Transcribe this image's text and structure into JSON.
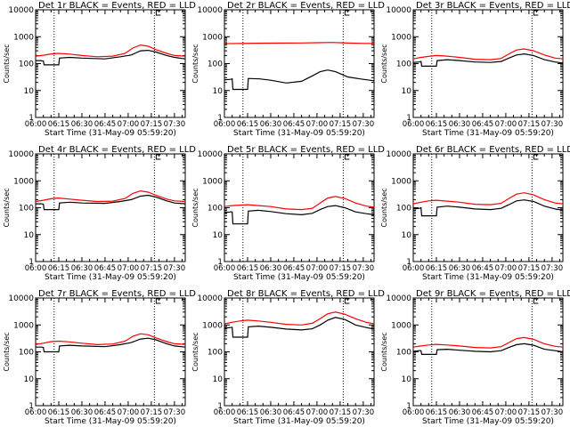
{
  "figure": {
    "xlabel": "Start Time (31-May-09 05:59:20)",
    "ylabel": "Counts/sec",
    "x_tick_labels": [
      "06:00",
      "06:15",
      "06:30",
      "06:45",
      "07:00",
      "07:15",
      "07:30"
    ],
    "y_tick_labels": [
      "1",
      "10",
      "100",
      "1000",
      "10000"
    ],
    "corner_mark": "E",
    "colors": {
      "events": "#000000",
      "lld": "#ff0000",
      "dotted_lines": "#000000"
    }
  },
  "chart_data": [
    {
      "type": "line",
      "title": "Det 1r BLACK = Events, RED = LLD",
      "xlabel": "Start Time (31-May-09 05:59:20)",
      "ylabel": "Counts/sec",
      "y_scale": "log",
      "ylim": [
        1,
        10000
      ],
      "x_minutes_ticks": [
        0,
        15,
        30,
        45,
        60,
        75,
        90
      ],
      "xlim_minutes": [
        0,
        97
      ],
      "vlines_minutes": [
        12,
        77
      ],
      "series": [
        {
          "name": "Events",
          "color": "#000000",
          "x_minutes": [
            0,
            3,
            5,
            5.5,
            15,
            15.5,
            22,
            30,
            45,
            55,
            62,
            68,
            73,
            78,
            85,
            90,
            97
          ],
          "values": [
            130,
            130,
            125,
            90,
            90,
            160,
            170,
            160,
            150,
            180,
            210,
            300,
            310,
            270,
            200,
            170,
            150
          ]
        },
        {
          "name": "LLD",
          "color": "#ff0000",
          "x_minutes": [
            0,
            5,
            10,
            15,
            22,
            30,
            40,
            50,
            58,
            63,
            68,
            73,
            78,
            85,
            90,
            97
          ],
          "values": [
            190,
            205,
            230,
            240,
            225,
            200,
            180,
            190,
            240,
            380,
            490,
            440,
            330,
            240,
            200,
            190
          ]
        }
      ]
    },
    {
      "type": "line",
      "title": "Det 2r BLACK = Events, RED = LLD",
      "xlabel": "Start Time (31-May-09 05:59:20)",
      "ylabel": "Counts/sec",
      "y_scale": "log",
      "ylim": [
        1,
        10000
      ],
      "x_minutes_ticks": [
        0,
        15,
        30,
        45,
        60,
        75,
        90
      ],
      "xlim_minutes": [
        0,
        97
      ],
      "vlines_minutes": [
        12,
        77
      ],
      "series": [
        {
          "name": "Events",
          "color": "#000000",
          "x_minutes": [
            0,
            4,
            5,
            5.5,
            15,
            15.5,
            23,
            30,
            40,
            50,
            57,
            62,
            67,
            72,
            80,
            88,
            97
          ],
          "values": [
            25,
            26,
            27,
            11,
            11,
            28,
            27,
            24,
            19,
            22,
            35,
            50,
            58,
            50,
            32,
            27,
            23
          ]
        },
        {
          "name": "LLD",
          "color": "#ff0000",
          "x_minutes": [
            0,
            10,
            20,
            30,
            40,
            50,
            60,
            70,
            80,
            90,
            97
          ],
          "values": [
            550,
            560,
            570,
            575,
            580,
            585,
            600,
            610,
            580,
            565,
            560
          ]
        }
      ]
    },
    {
      "type": "line",
      "title": "Det 3r BLACK = Events, RED = LLD",
      "xlabel": "Start Time (31-May-09 05:59:20)",
      "ylabel": "Counts/sec",
      "y_scale": "log",
      "ylim": [
        1,
        10000
      ],
      "x_minutes_ticks": [
        0,
        15,
        30,
        45,
        60,
        75,
        90
      ],
      "xlim_minutes": [
        0,
        97
      ],
      "vlines_minutes": [
        12,
        77
      ],
      "series": [
        {
          "name": "Events",
          "color": "#000000",
          "x_minutes": [
            0,
            4,
            5,
            5.5,
            15,
            15.5,
            22,
            30,
            40,
            50,
            57,
            62,
            67,
            72,
            78,
            85,
            92,
            97
          ],
          "values": [
            110,
            115,
            120,
            80,
            80,
            130,
            140,
            130,
            115,
            110,
            120,
            160,
            210,
            230,
            200,
            140,
            115,
            105
          ]
        },
        {
          "name": "LLD",
          "color": "#ff0000",
          "x_minutes": [
            0,
            5,
            10,
            15,
            22,
            30,
            40,
            50,
            57,
            62,
            67,
            72,
            78,
            85,
            92,
            97
          ],
          "values": [
            150,
            170,
            185,
            200,
            190,
            170,
            145,
            140,
            155,
            230,
            320,
            350,
            300,
            210,
            160,
            150
          ]
        }
      ]
    },
    {
      "type": "line",
      "title": "Det 4r BLACK = Events, RED = LLD",
      "xlabel": "Start Time (31-May-09 05:59:20)",
      "ylabel": "Counts/sec",
      "y_scale": "log",
      "ylim": [
        1,
        10000
      ],
      "x_minutes_ticks": [
        0,
        15,
        30,
        45,
        60,
        75,
        90
      ],
      "xlim_minutes": [
        0,
        97
      ],
      "vlines_minutes": [
        12,
        77
      ],
      "series": [
        {
          "name": "Events",
          "color": "#000000",
          "x_minutes": [
            0,
            4,
            5,
            5.5,
            15,
            15.5,
            22,
            30,
            45,
            55,
            62,
            68,
            73,
            78,
            85,
            90,
            97
          ],
          "values": [
            140,
            140,
            135,
            85,
            85,
            150,
            160,
            150,
            145,
            170,
            200,
            270,
            290,
            250,
            180,
            150,
            140
          ]
        },
        {
          "name": "LLD",
          "color": "#ff0000",
          "x_minutes": [
            0,
            5,
            10,
            15,
            22,
            30,
            40,
            50,
            58,
            63,
            68,
            73,
            78,
            85,
            90,
            97
          ],
          "values": [
            170,
            190,
            215,
            230,
            210,
            190,
            170,
            175,
            220,
            340,
            420,
            380,
            290,
            210,
            180,
            170
          ]
        }
      ]
    },
    {
      "type": "line",
      "title": "Det 5r BLACK = Events, RED = LLD",
      "xlabel": "Start Time (31-May-09 05:59:20)",
      "ylabel": "Counts/sec",
      "y_scale": "log",
      "ylim": [
        1,
        10000
      ],
      "x_minutes_ticks": [
        0,
        15,
        30,
        45,
        60,
        75,
        90
      ],
      "xlim_minutes": [
        0,
        97
      ],
      "vlines_minutes": [
        12,
        77
      ],
      "series": [
        {
          "name": "Events",
          "color": "#000000",
          "x_minutes": [
            0,
            4,
            5,
            5.5,
            15,
            15.5,
            22,
            30,
            40,
            50,
            57,
            62,
            67,
            72,
            78,
            85,
            92,
            97
          ],
          "values": [
            65,
            70,
            70,
            25,
            25,
            75,
            80,
            72,
            60,
            55,
            62,
            85,
            110,
            120,
            100,
            70,
            60,
            55
          ]
        },
        {
          "name": "LLD",
          "color": "#ff0000",
          "x_minutes": [
            0,
            5,
            10,
            15,
            22,
            30,
            40,
            50,
            57,
            62,
            67,
            72,
            78,
            85,
            92,
            97
          ],
          "values": [
            110,
            120,
            125,
            130,
            120,
            110,
            90,
            85,
            95,
            150,
            230,
            260,
            220,
            150,
            115,
            105
          ]
        }
      ]
    },
    {
      "type": "line",
      "title": "Det 6r BLACK = Events, RED = LLD",
      "xlabel": "Start Time (31-May-09 05:59:20)",
      "ylabel": "Counts/sec",
      "y_scale": "log",
      "ylim": [
        1,
        10000
      ],
      "x_minutes_ticks": [
        0,
        15,
        30,
        45,
        60,
        75,
        90
      ],
      "xlim_minutes": [
        0,
        97
      ],
      "vlines_minutes": [
        12,
        77
      ],
      "series": [
        {
          "name": "Events",
          "color": "#000000",
          "x_minutes": [
            0,
            4,
            5,
            5.5,
            15,
            15.5,
            22,
            30,
            40,
            50,
            57,
            62,
            67,
            72,
            78,
            85,
            92,
            97
          ],
          "values": [
            90,
            95,
            100,
            50,
            50,
            105,
            115,
            105,
            90,
            85,
            95,
            130,
            180,
            195,
            170,
            115,
            90,
            80
          ]
        },
        {
          "name": "LLD",
          "color": "#ff0000",
          "x_minutes": [
            0,
            5,
            10,
            15,
            22,
            30,
            40,
            50,
            57,
            62,
            67,
            72,
            78,
            85,
            92,
            97
          ],
          "values": [
            140,
            160,
            180,
            190,
            175,
            160,
            135,
            130,
            145,
            220,
            320,
            360,
            300,
            200,
            150,
            140
          ]
        }
      ]
    },
    {
      "type": "line",
      "title": "Det 7r BLACK = Events, RED = LLD",
      "xlabel": "Start Time (31-May-09 05:59:20)",
      "ylabel": "Counts/sec",
      "y_scale": "log",
      "ylim": [
        1,
        10000
      ],
      "x_minutes_ticks": [
        0,
        15,
        30,
        45,
        60,
        75,
        90
      ],
      "xlim_minutes": [
        0,
        97
      ],
      "vlines_minutes": [
        12,
        77
      ],
      "series": [
        {
          "name": "Events",
          "color": "#000000",
          "x_minutes": [
            0,
            4,
            5,
            5.5,
            15,
            15.5,
            22,
            30,
            45,
            55,
            62,
            68,
            73,
            78,
            85,
            90,
            97
          ],
          "values": [
            150,
            150,
            145,
            100,
            100,
            165,
            175,
            165,
            155,
            185,
            220,
            300,
            320,
            280,
            200,
            165,
            150
          ]
        },
        {
          "name": "LLD",
          "color": "#ff0000",
          "x_minutes": [
            0,
            5,
            10,
            15,
            22,
            30,
            40,
            50,
            58,
            63,
            68,
            73,
            78,
            85,
            90,
            97
          ],
          "values": [
            190,
            210,
            240,
            250,
            235,
            210,
            185,
            195,
            250,
            380,
            470,
            430,
            330,
            240,
            200,
            190
          ]
        }
      ]
    },
    {
      "type": "line",
      "title": "Det 8r BLACK = Events, RED = LLD",
      "xlabel": "Start Time (31-May-09 05:59:20)",
      "ylabel": "Counts/sec",
      "y_scale": "log",
      "ylim": [
        1,
        10000
      ],
      "x_minutes_ticks": [
        0,
        15,
        30,
        45,
        60,
        75,
        90
      ],
      "xlim_minutes": [
        0,
        97
      ],
      "vlines_minutes": [
        12,
        77
      ],
      "series": [
        {
          "name": "Events",
          "color": "#000000",
          "x_minutes": [
            0,
            4,
            5,
            5.5,
            15,
            15.5,
            22,
            30,
            40,
            50,
            57,
            62,
            67,
            72,
            78,
            85,
            92,
            97
          ],
          "values": [
            750,
            800,
            820,
            350,
            350,
            850,
            900,
            820,
            700,
            650,
            720,
            1000,
            1500,
            1900,
            1600,
            1000,
            800,
            700
          ]
        },
        {
          "name": "LLD",
          "color": "#ff0000",
          "x_minutes": [
            0,
            5,
            10,
            15,
            22,
            30,
            40,
            50,
            57,
            62,
            67,
            72,
            78,
            85,
            92,
            97
          ],
          "values": [
            1100,
            1250,
            1400,
            1500,
            1400,
            1250,
            1050,
            1000,
            1150,
            1700,
            2600,
            3000,
            2500,
            1700,
            1250,
            1100
          ]
        }
      ]
    },
    {
      "type": "line",
      "title": "Det 9r BLACK = Events, RED = LLD",
      "xlabel": "Start Time (31-May-09 05:59:20)",
      "ylabel": "Counts/sec",
      "y_scale": "log",
      "ylim": [
        1,
        10000
      ],
      "x_minutes_ticks": [
        0,
        15,
        30,
        45,
        60,
        75,
        90
      ],
      "xlim_minutes": [
        0,
        97
      ],
      "vlines_minutes": [
        12,
        77
      ],
      "series": [
        {
          "name": "Events",
          "color": "#000000",
          "x_minutes": [
            0,
            4,
            5,
            5.5,
            15,
            15.5,
            22,
            30,
            40,
            50,
            57,
            62,
            67,
            72,
            78,
            85,
            92,
            97
          ],
          "values": [
            105,
            110,
            110,
            80,
            80,
            120,
            125,
            115,
            105,
            100,
            110,
            145,
            185,
            200,
            175,
            125,
            110,
            100
          ]
        },
        {
          "name": "LLD",
          "color": "#ff0000",
          "x_minutes": [
            0,
            5,
            10,
            15,
            22,
            30,
            40,
            50,
            57,
            62,
            67,
            72,
            78,
            85,
            92,
            97
          ],
          "values": [
            150,
            165,
            180,
            190,
            180,
            165,
            145,
            140,
            155,
            220,
            310,
            340,
            290,
            200,
            160,
            150
          ]
        }
      ]
    }
  ]
}
